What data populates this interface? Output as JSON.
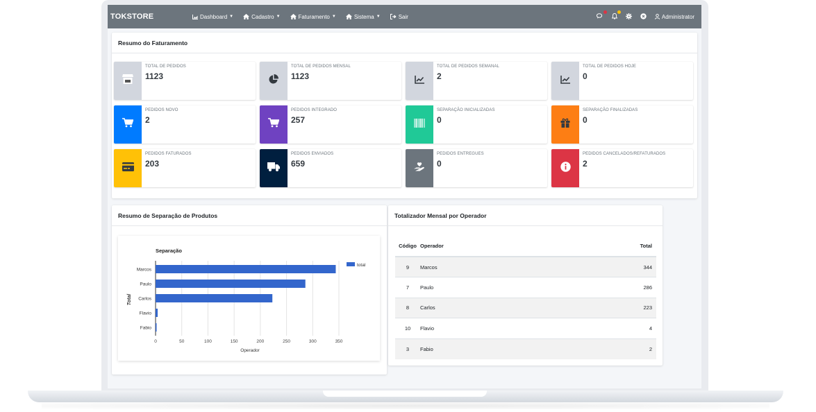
{
  "navbar": {
    "brand": "TOKSTORE",
    "menu": [
      {
        "label": "Dashboard",
        "icon": "chart-area-icon"
      },
      {
        "label": "Cadastro",
        "icon": "home-icon"
      },
      {
        "label": "Faturamento",
        "icon": "home-icon"
      },
      {
        "label": "Sistema",
        "icon": "home-icon"
      },
      {
        "label": "Sair",
        "icon": "sign-out-icon"
      }
    ],
    "user": "Administrator",
    "colors": {
      "bar": "#6c757d",
      "badge_red": "#dc3545",
      "badge_yellow": "#ffc107"
    }
  },
  "billing_summary": {
    "title": "Resumo do Faturamento",
    "boxes": [
      {
        "label": "TOTAL DE PEDIDOS",
        "value": "1123",
        "color": "#d2d6de",
        "icon": "store-icon"
      },
      {
        "label": "TOTAL DE PEDIDOS MENSAL",
        "value": "1123",
        "color": "#d2d6de",
        "icon": "pie-chart-icon"
      },
      {
        "label": "TOTAL DE PEDIDOS SEMANAL",
        "value": "2",
        "color": "#d2d6de",
        "icon": "line-chart-icon"
      },
      {
        "label": "TOTAL DE PEDIDOS HOJE",
        "value": "0",
        "color": "#d2d6de",
        "icon": "line-chart-icon"
      },
      {
        "label": "PEDIDOS NOVO",
        "value": "2",
        "color": "#007bff",
        "icon": "cart-icon"
      },
      {
        "label": "PEDIDOS INTEGRADO",
        "value": "257",
        "color": "#6f42c1",
        "icon": "cart-icon"
      },
      {
        "label": "SEPARAÇÃO INICIALIZADAS",
        "value": "0",
        "color": "#20c997",
        "icon": "barcode-icon"
      },
      {
        "label": "SEPARAÇÃO FINALIZADAS",
        "value": "0",
        "color": "#fd7e14",
        "icon": "gift-icon"
      },
      {
        "label": "PEDIDOS FATURADOS",
        "value": "203",
        "color": "#ffc107",
        "icon": "credit-card-icon"
      },
      {
        "label": "PEDIDOS ENVIADOS",
        "value": "659",
        "color": "#001f3f",
        "icon": "truck-icon"
      },
      {
        "label": "PEDIDOS ENTREGUES",
        "value": "0",
        "color": "#6c757d",
        "icon": "hand-heart-icon"
      },
      {
        "label": "PEDIDOS CANCELADOS/REFATURADOS",
        "value": "2",
        "color": "#dc3545",
        "icon": "info-circle-icon"
      }
    ]
  },
  "separation": {
    "title": "Resumo de Separação de Produtos"
  },
  "chart_data": {
    "type": "bar",
    "orientation": "horizontal",
    "title": "Separação",
    "xlabel": "Operador",
    "ylabel": "Total",
    "categories": [
      "Marcos",
      "Paulo",
      "Carlos",
      "Flavio",
      "Fabio"
    ],
    "series": [
      {
        "name": "total",
        "values": [
          344,
          286,
          223,
          4,
          2
        ],
        "color": "#3366cc"
      }
    ],
    "xlim": [
      0,
      350
    ],
    "xticks": [
      "0",
      "50",
      "100",
      "150",
      "200",
      "250",
      "300",
      "350"
    ],
    "grid": true,
    "legend": "top-right"
  },
  "operator_totals": {
    "title": "Totalizador Mensal por Operador",
    "headers": [
      "Código",
      "Operador",
      "Total"
    ],
    "rows": [
      [
        "9",
        "Marcos",
        "344"
      ],
      [
        "7",
        "Paulo",
        "286"
      ],
      [
        "8",
        "Carlos",
        "223"
      ],
      [
        "10",
        "Flavio",
        "4"
      ],
      [
        "3",
        "Fabio",
        "2"
      ]
    ]
  }
}
